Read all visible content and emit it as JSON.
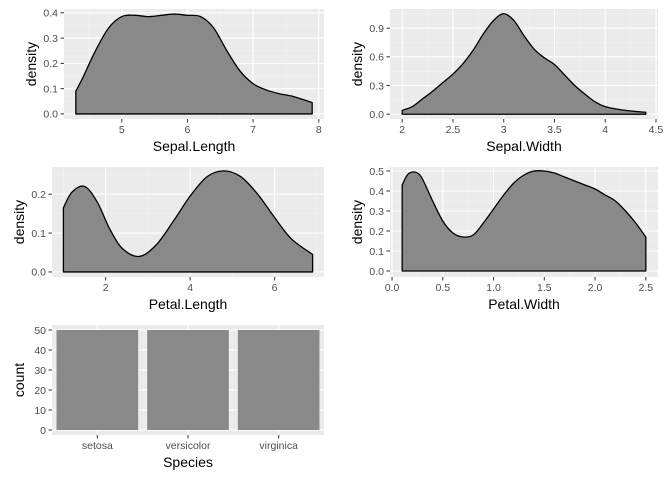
{
  "colors": {
    "panel_bg": "#ebebeb",
    "grid_major": "#ffffff",
    "grid_minor": "#f4f4f4",
    "fill": "#898989",
    "outline": "#000000",
    "tick_text": "#4d4d4d"
  },
  "chart_data": [
    {
      "type": "area",
      "name": "Sepal.Length density",
      "xlabel": "Sepal.Length",
      "ylabel": "density",
      "xlim": [
        4.12,
        8.08
      ],
      "ylim": [
        -0.02,
        0.415
      ],
      "xticks": [
        5,
        6,
        7,
        8
      ],
      "yticks": [
        0.0,
        0.1,
        0.2,
        0.3,
        0.4
      ],
      "ytick_labels": [
        "0.0",
        "0.1",
        "0.2",
        "0.3",
        "0.4"
      ],
      "grid": true,
      "x": [
        4.3,
        4.4,
        4.6,
        4.8,
        5.0,
        5.2,
        5.4,
        5.6,
        5.8,
        6.0,
        6.2,
        6.4,
        6.6,
        6.8,
        7.0,
        7.2,
        7.4,
        7.6,
        7.9
      ],
      "y": [
        0.09,
        0.14,
        0.25,
        0.34,
        0.385,
        0.39,
        0.385,
        0.39,
        0.395,
        0.39,
        0.385,
        0.34,
        0.25,
        0.17,
        0.12,
        0.095,
        0.08,
        0.07,
        0.045
      ]
    },
    {
      "type": "area",
      "name": "Sepal.Width density",
      "xlabel": "Sepal.Width",
      "ylabel": "density",
      "xlim": [
        1.88,
        4.52
      ],
      "ylim": [
        -0.05,
        1.1
      ],
      "xticks": [
        2.0,
        2.5,
        3.0,
        3.5,
        4.0,
        4.5
      ],
      "yticks": [
        0.0,
        0.3,
        0.6,
        0.9
      ],
      "ytick_labels": [
        "0.0",
        "0.3",
        "0.6",
        "0.9"
      ],
      "grid": true,
      "x": [
        2.0,
        2.1,
        2.2,
        2.3,
        2.4,
        2.5,
        2.6,
        2.7,
        2.8,
        2.9,
        3.0,
        3.1,
        3.2,
        3.3,
        3.4,
        3.5,
        3.6,
        3.7,
        3.8,
        3.9,
        4.0,
        4.2,
        4.4
      ],
      "y": [
        0.04,
        0.08,
        0.16,
        0.24,
        0.33,
        0.42,
        0.53,
        0.67,
        0.84,
        0.98,
        1.05,
        0.98,
        0.82,
        0.68,
        0.59,
        0.52,
        0.41,
        0.3,
        0.21,
        0.13,
        0.08,
        0.04,
        0.02
      ]
    },
    {
      "type": "area",
      "name": "Petal.Length density",
      "xlabel": "Petal.Length",
      "ylabel": "density",
      "xlim": [
        0.73,
        7.17
      ],
      "ylim": [
        -0.013,
        0.27
      ],
      "xticks": [
        2,
        4,
        6
      ],
      "yticks": [
        0.0,
        0.1,
        0.2
      ],
      "ytick_labels": [
        "0.0",
        "0.1",
        "0.2"
      ],
      "grid": true,
      "x": [
        1.0,
        1.2,
        1.5,
        1.8,
        2.1,
        2.4,
        2.8,
        3.2,
        3.6,
        4.0,
        4.4,
        4.8,
        5.2,
        5.6,
        6.0,
        6.4,
        6.9
      ],
      "y": [
        0.165,
        0.205,
        0.22,
        0.18,
        0.11,
        0.06,
        0.04,
        0.07,
        0.13,
        0.195,
        0.245,
        0.26,
        0.245,
        0.2,
        0.14,
        0.085,
        0.045
      ]
    },
    {
      "type": "area",
      "name": "Petal.Width density",
      "xlabel": "Petal.Width",
      "ylabel": "density",
      "xlim": [
        -0.02,
        2.62
      ],
      "ylim": [
        -0.03,
        0.52
      ],
      "xticks": [
        0.0,
        0.5,
        1.0,
        1.5,
        2.0,
        2.5
      ],
      "xtick_labels": [
        "0.0",
        "0.5",
        "1.0",
        "1.5",
        "2.0",
        "2.5"
      ],
      "yticks": [
        0.0,
        0.1,
        0.2,
        0.3,
        0.4,
        0.5
      ],
      "ytick_labels": [
        "0.0",
        "0.1",
        "0.2",
        "0.3",
        "0.4",
        "0.5"
      ],
      "grid": true,
      "x": [
        0.1,
        0.15,
        0.2,
        0.25,
        0.3,
        0.4,
        0.5,
        0.6,
        0.7,
        0.8,
        0.9,
        1.0,
        1.1,
        1.2,
        1.3,
        1.4,
        1.5,
        1.6,
        1.7,
        1.8,
        1.9,
        2.0,
        2.1,
        2.2,
        2.3,
        2.4,
        2.5
      ],
      "y": [
        0.43,
        0.48,
        0.495,
        0.49,
        0.46,
        0.35,
        0.25,
        0.19,
        0.17,
        0.18,
        0.24,
        0.31,
        0.38,
        0.44,
        0.48,
        0.5,
        0.5,
        0.49,
        0.47,
        0.45,
        0.43,
        0.41,
        0.38,
        0.35,
        0.3,
        0.24,
        0.17
      ]
    },
    {
      "type": "bar",
      "name": "Species count",
      "xlabel": "Species",
      "ylabel": "count",
      "categories": [
        "setosa",
        "versicolor",
        "virginica"
      ],
      "values": [
        50,
        50,
        50
      ],
      "ylim": [
        -2.5,
        52.5
      ],
      "yticks": [
        0,
        10,
        20,
        30,
        40,
        50
      ],
      "ytick_labels": [
        "0",
        "10",
        "20",
        "30",
        "40",
        "50"
      ],
      "grid": true
    }
  ]
}
